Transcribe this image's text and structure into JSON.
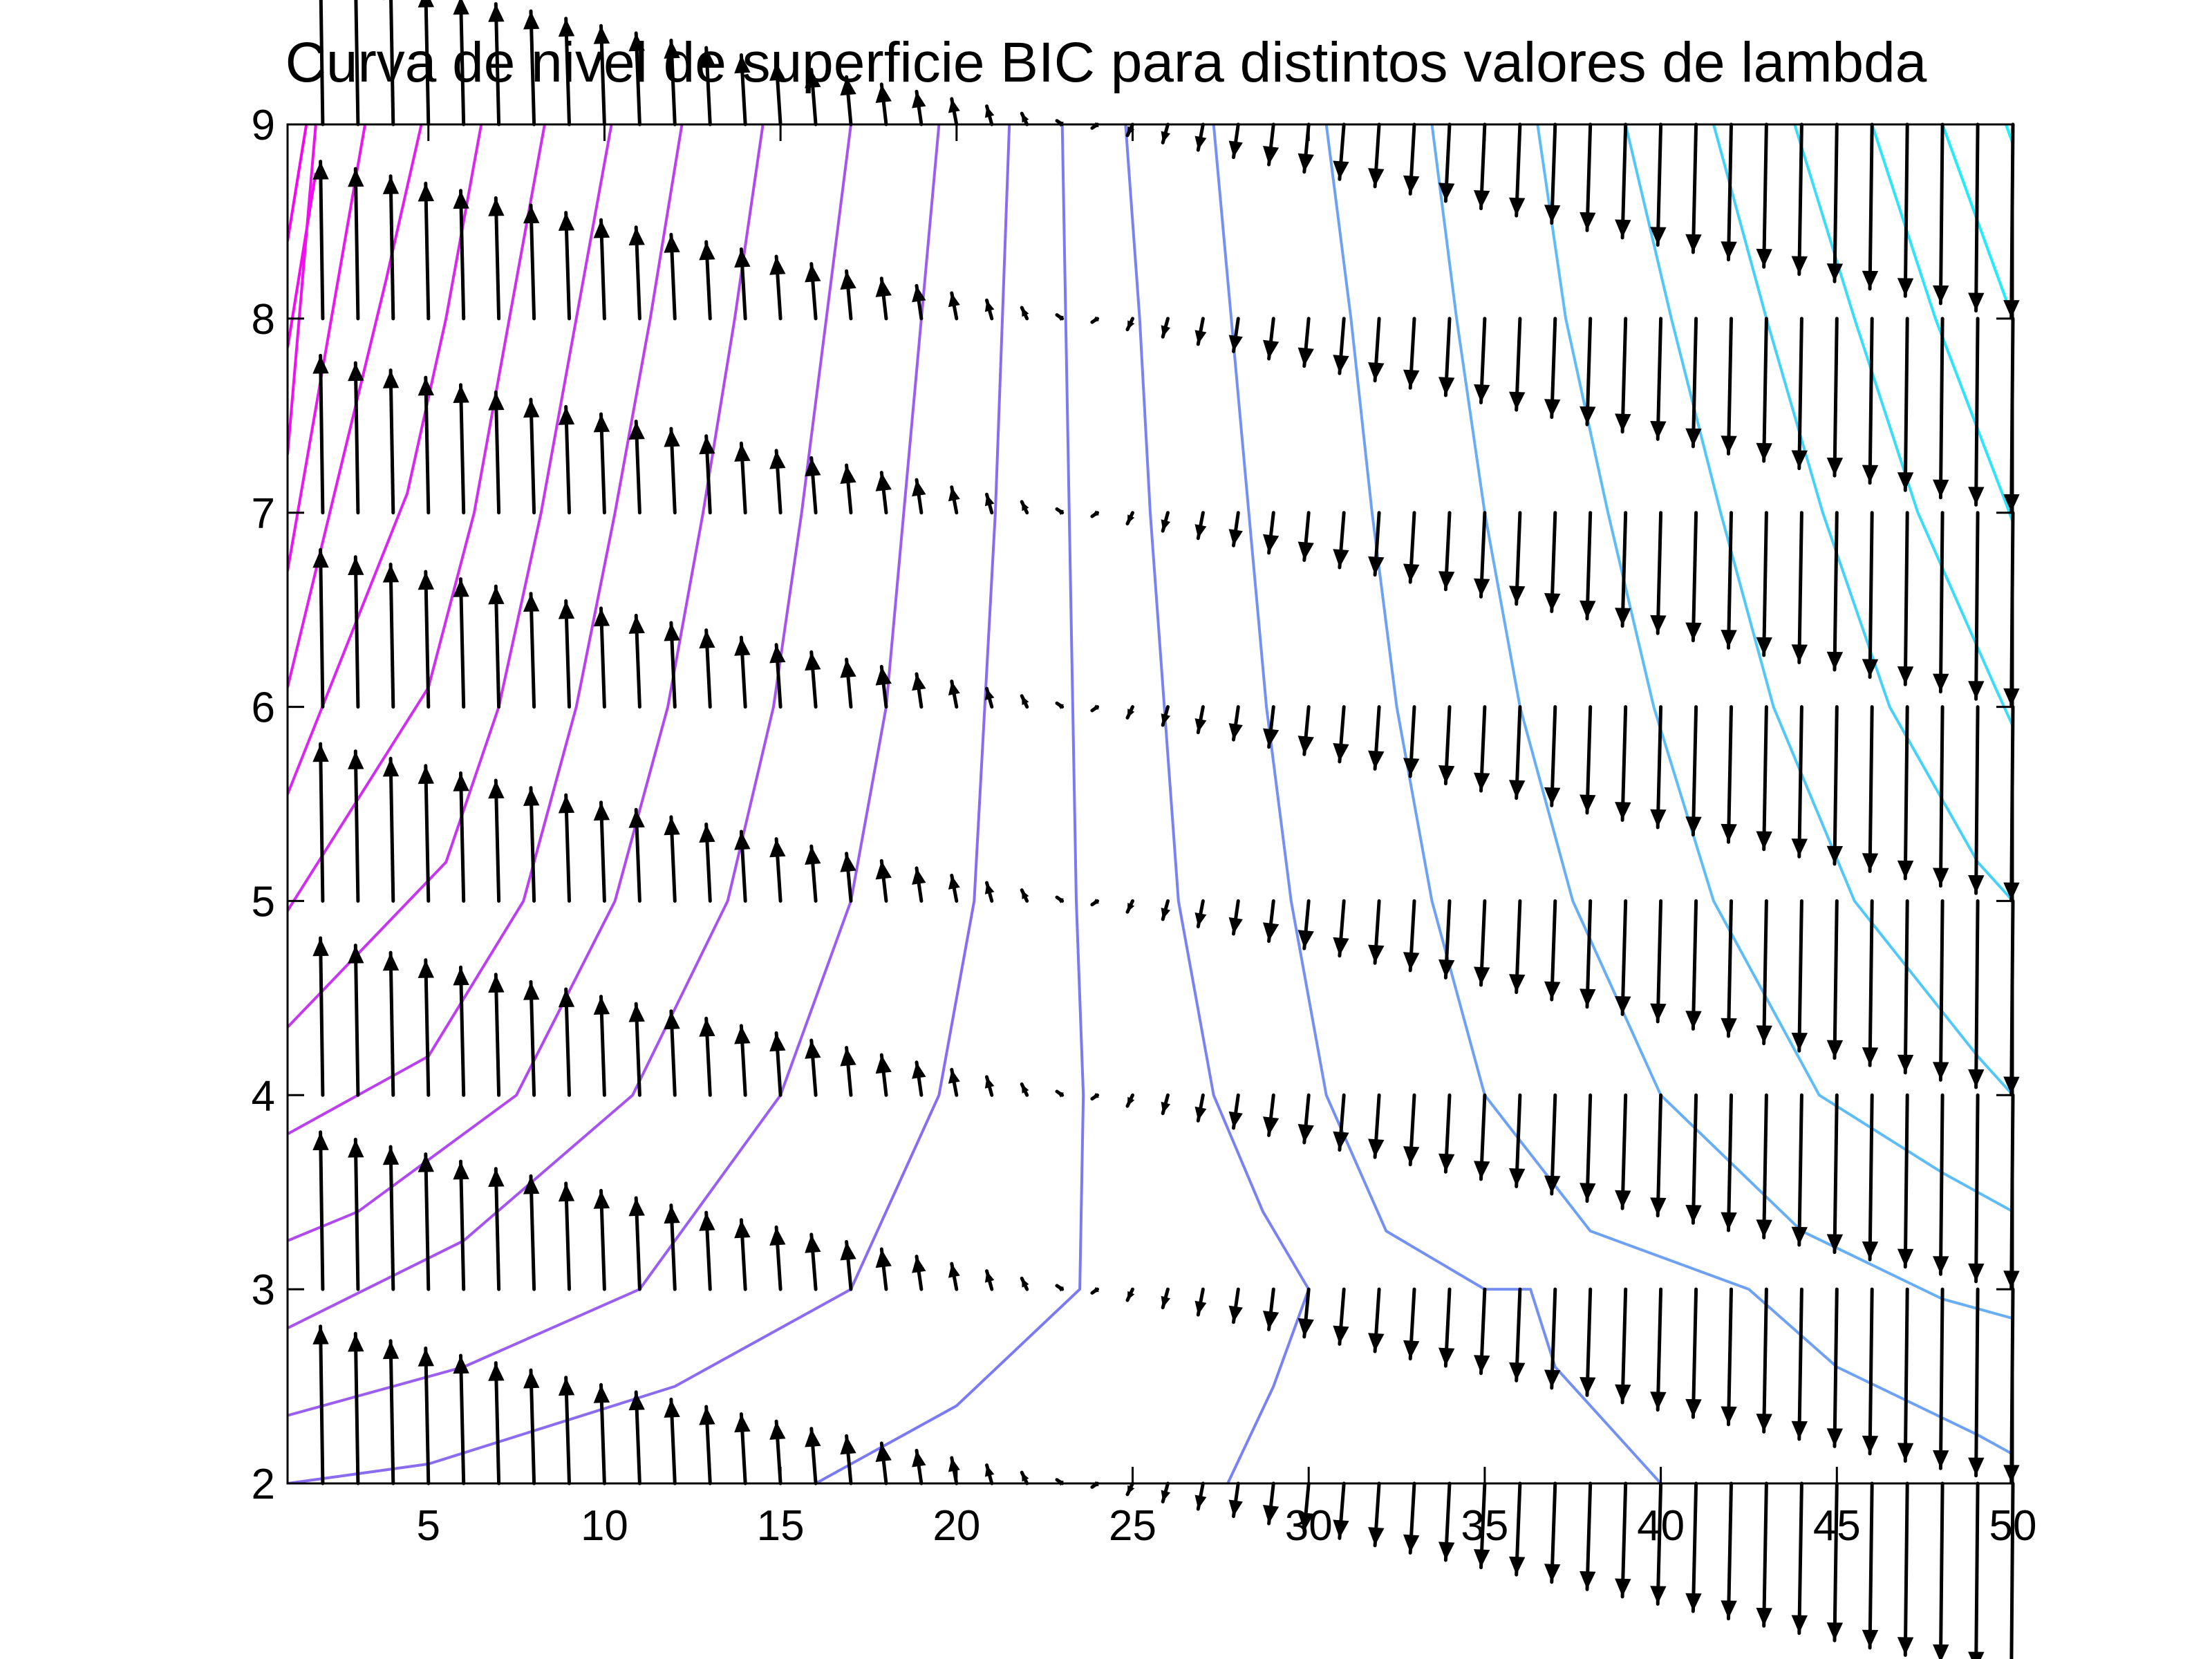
{
  "chart_data": {
    "type": "contour",
    "title": "Curva de nivel de superficie BIC para distintos valores de lambda",
    "xlabel": "",
    "ylabel": "",
    "xlim": [
      1,
      50
    ],
    "ylim": [
      2,
      9
    ],
    "x_ticks": [
      5,
      10,
      15,
      20,
      25,
      30,
      35,
      40,
      45,
      50
    ],
    "y_ticks": [
      2,
      3,
      4,
      5,
      6,
      7,
      8,
      9
    ],
    "grid": false,
    "legend": "none",
    "colormap": "cool",
    "contours": [
      {
        "color": "#7a7af2",
        "points": [
          [
            23.0,
            9
          ],
          [
            23.1,
            8
          ],
          [
            23.2,
            7
          ],
          [
            23.3,
            6
          ],
          [
            23.4,
            5
          ],
          [
            23.6,
            4
          ],
          [
            23.5,
            3
          ],
          [
            20,
            2.4
          ],
          [
            16,
            2.0
          ]
        ]
      },
      {
        "color": "#8a6cf0",
        "points": [
          [
            21.5,
            9
          ],
          [
            21.3,
            8
          ],
          [
            21.1,
            7
          ],
          [
            20.8,
            6
          ],
          [
            20.5,
            5
          ],
          [
            19.5,
            4
          ],
          [
            17,
            3
          ],
          [
            12,
            2.5
          ],
          [
            5,
            2.1
          ],
          [
            1,
            2.0
          ]
        ]
      },
      {
        "color": "#9a5ef0",
        "points": [
          [
            19.5,
            9
          ],
          [
            19.0,
            8
          ],
          [
            18.5,
            7
          ],
          [
            18.0,
            6
          ],
          [
            17.0,
            5
          ],
          [
            15.0,
            4
          ],
          [
            11,
            3
          ],
          [
            6,
            2.6
          ],
          [
            1,
            2.35
          ]
        ]
      },
      {
        "color": "#a654ee",
        "points": [
          [
            17.0,
            9
          ],
          [
            16.3,
            8
          ],
          [
            15.6,
            7
          ],
          [
            14.8,
            6
          ],
          [
            13.5,
            5
          ],
          [
            10.8,
            4
          ],
          [
            6,
            3.25
          ],
          [
            1,
            2.8
          ]
        ]
      },
      {
        "color": "#b04aee",
        "points": [
          [
            14.5,
            9
          ],
          [
            13.7,
            8
          ],
          [
            12.8,
            7
          ],
          [
            11.8,
            6
          ],
          [
            10.3,
            5
          ],
          [
            7.5,
            4
          ],
          [
            3,
            3.4
          ],
          [
            1,
            3.25
          ]
        ]
      },
      {
        "color": "#bb40ee",
        "points": [
          [
            12.2,
            9
          ],
          [
            11.3,
            8
          ],
          [
            10.3,
            7
          ],
          [
            9.2,
            6
          ],
          [
            7.7,
            5
          ],
          [
            5.0,
            4.2
          ],
          [
            1,
            3.8
          ]
        ]
      },
      {
        "color": "#c538ee",
        "points": [
          [
            10.2,
            9
          ],
          [
            9.2,
            8
          ],
          [
            8.2,
            7
          ],
          [
            7.0,
            6
          ],
          [
            5.5,
            5.2
          ],
          [
            1,
            4.35
          ]
        ]
      },
      {
        "color": "#cf30ee",
        "points": [
          [
            8.3,
            9
          ],
          [
            7.3,
            8
          ],
          [
            6.3,
            7
          ],
          [
            5.0,
            6.1
          ],
          [
            1,
            4.95
          ]
        ]
      },
      {
        "color": "#d828ee",
        "points": [
          [
            6.5,
            9
          ],
          [
            5.5,
            8
          ],
          [
            4.4,
            7.1
          ],
          [
            1,
            5.55
          ]
        ]
      },
      {
        "color": "#e020ee",
        "points": [
          [
            4.8,
            9
          ],
          [
            3.8,
            8.2
          ],
          [
            1,
            6.1
          ]
        ]
      },
      {
        "color": "#e818ee",
        "points": [
          [
            3.2,
            9
          ],
          [
            1,
            6.7
          ]
        ]
      },
      {
        "color": "#ee12ee",
        "points": [
          [
            1.8,
            9
          ],
          [
            1,
            7.3
          ]
        ]
      },
      {
        "color": "#f20cee",
        "points": [
          [
            1,
            7.85
          ]
        ]
      },
      {
        "color": "#f506ee",
        "points": [
          [
            1,
            8.4
          ]
        ]
      },
      {
        "color": "#7a82f2",
        "points": [
          [
            24.8,
            9
          ],
          [
            25.2,
            8
          ],
          [
            25.5,
            7
          ],
          [
            25.9,
            6
          ],
          [
            26.3,
            5
          ],
          [
            27.3,
            4
          ],
          [
            28.7,
            3.4
          ],
          [
            30,
            3
          ],
          [
            29,
            2.5
          ],
          [
            27.7,
            2.0
          ]
        ]
      },
      {
        "color": "#7490f2",
        "points": [
          [
            27.3,
            9
          ],
          [
            27.8,
            8
          ],
          [
            28.3,
            7
          ],
          [
            28.8,
            6
          ],
          [
            29.5,
            5
          ],
          [
            30.5,
            4
          ],
          [
            32.2,
            3.3
          ],
          [
            35,
            3.0
          ],
          [
            36.3,
            3.0
          ],
          [
            37,
            2.6
          ],
          [
            38.5,
            2.3
          ],
          [
            40,
            2.0
          ]
        ]
      },
      {
        "color": "#6ea0f4",
        "points": [
          [
            30.5,
            9
          ],
          [
            31.2,
            8
          ],
          [
            31.8,
            7
          ],
          [
            32.5,
            6
          ],
          [
            33.5,
            5
          ],
          [
            35.0,
            4
          ],
          [
            38,
            3.3
          ],
          [
            42.5,
            3.0
          ],
          [
            45,
            2.6
          ],
          [
            49,
            2.25
          ],
          [
            50,
            2.15
          ]
        ]
      },
      {
        "color": "#68aef4",
        "points": [
          [
            33.5,
            9
          ],
          [
            34.2,
            8
          ],
          [
            35.0,
            7
          ],
          [
            36.0,
            6
          ],
          [
            37.5,
            5
          ],
          [
            40.0,
            4
          ],
          [
            44,
            3.3
          ],
          [
            48,
            2.95
          ],
          [
            50,
            2.85
          ]
        ]
      },
      {
        "color": "#5ebcf6",
        "points": [
          [
            36.5,
            9
          ],
          [
            37.3,
            8
          ],
          [
            38.5,
            7
          ],
          [
            39.8,
            6
          ],
          [
            41.5,
            5
          ],
          [
            44.5,
            4
          ],
          [
            48,
            3.6
          ],
          [
            50,
            3.4
          ]
        ]
      },
      {
        "color": "#52c8f6",
        "points": [
          [
            39.0,
            9
          ],
          [
            40.3,
            8
          ],
          [
            41.7,
            7
          ],
          [
            43.2,
            6
          ],
          [
            45.5,
            5
          ],
          [
            49,
            4.2
          ],
          [
            50,
            4.0
          ]
        ]
      },
      {
        "color": "#46d2f8",
        "points": [
          [
            41.5,
            9
          ],
          [
            43.0,
            8
          ],
          [
            44.6,
            7
          ],
          [
            46.5,
            6
          ],
          [
            49,
            5.2
          ],
          [
            50,
            5.0
          ]
        ]
      },
      {
        "color": "#3adcf8",
        "points": [
          [
            43.8,
            9
          ],
          [
            45.5,
            8
          ],
          [
            47.3,
            7
          ],
          [
            49.5,
            6.1
          ],
          [
            50,
            5.9
          ]
        ]
      },
      {
        "color": "#2ee4fa",
        "points": [
          [
            46.0,
            9
          ],
          [
            47.8,
            8
          ],
          [
            49.8,
            7.05
          ],
          [
            50,
            6.95
          ]
        ]
      },
      {
        "color": "#22ecfa",
        "points": [
          [
            48.0,
            9
          ],
          [
            49.8,
            8.1
          ],
          [
            50,
            8.0
          ]
        ]
      },
      {
        "color": "#16f4fc",
        "points": [
          [
            49.8,
            9
          ],
          [
            50,
            8.9
          ]
        ]
      }
    ],
    "quiver": {
      "x_start": 1,
      "x_step": 1,
      "x_count": 50,
      "y_values": [
        2,
        3,
        4,
        5,
        6,
        7,
        8,
        9
      ],
      "color": "#000000"
    }
  }
}
